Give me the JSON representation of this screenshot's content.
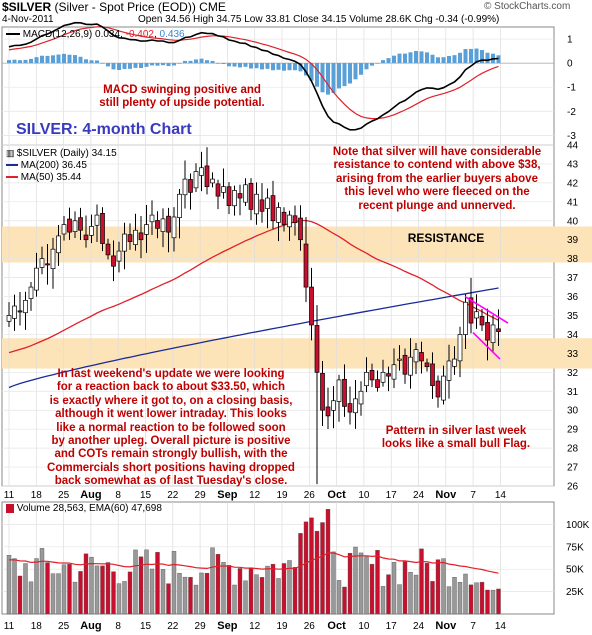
{
  "header": {
    "symbol": "$SILVER",
    "description": "(Silver - Spot Price (EOD)) CME",
    "date": "4-Nov-2011",
    "ohlc_line": "Open 34.56 High 34.75 Low 33.81 Close 34.15 Volume 28.6K Chg -0.34 (-0.99%)",
    "watermark": "© StockCharts.com"
  },
  "colors": {
    "up_candle": "#ffffff",
    "down_candle": "#c8102e",
    "ma200": "#1a2a9a",
    "ma50": "#e0202a",
    "zone": "#fde3b8",
    "annotation": "#c00000",
    "title": "#3a3ac0",
    "macd_hist": "#5aa0d8",
    "flag_lines": "#ff00ff"
  },
  "panels": {
    "macd_label_prefix": "MACD(12,26,9)",
    "macd_values": [
      "0.034",
      "-0.402",
      "0.436"
    ],
    "price_label": "$SILVER (Daily) 34.15",
    "ma200_label": "MA(200) 36.45",
    "ma50_label": "MA(50) 35.44",
    "volume_label": "Volume 28,563, EMA(60) 47,698"
  },
  "annotations": {
    "title": "SILVER: 4-month Chart",
    "macd_note": "MACD swinging positive and\nstill plenty of upside potential.",
    "resistance_note": "Note that silver will have considerable\nresistance to contend with above $38,\narising from the earlier buyers above\nthis level who were fleeced on the\nrecent plunge and unnerved.",
    "resistance_label": "RESISTANCE",
    "update_note": "In last weekend's update we were looking\nfor a reaction back to about $33.50, which\nis exactly where it got to, on a closing basis,\nalthough it went lower intraday. This looks\nlike a normal reaction to be followed soon\nby another upleg. Overall picture is positive\nand COTs remain strongly bullish, with the\nCommercials short positions having dropped\nback somewhat as of last Tuesday's close.",
    "flag_note": "Pattern in silver last week\nlooks like a small bull Flag."
  },
  "chart_data": {
    "type": "candlestick",
    "x_tick_labels": [
      "11",
      "18",
      "25",
      "Aug",
      "8",
      "15",
      "22",
      "29",
      "Sep",
      "12",
      "19",
      "26",
      "Oct",
      "10",
      "17",
      "24",
      "Nov",
      "7",
      "14"
    ],
    "price_axis": {
      "min": 26,
      "max": 44,
      "ticks": [
        26,
        27,
        28,
        29,
        30,
        31,
        32,
        33,
        34,
        35,
        36,
        37,
        38,
        39,
        40,
        41,
        42,
        43,
        44
      ]
    },
    "macd_axis": {
      "min": -3,
      "max": 1,
      "ticks": [
        1,
        0,
        -1,
        -2,
        -3
      ]
    },
    "volume_axis": {
      "ticks": [
        "100K",
        "75K",
        "50K",
        "25K"
      ],
      "tick_values": [
        100000,
        75000,
        50000,
        25000
      ],
      "max": 125000
    },
    "resistance_zone": [
      37.8,
      39.7
    ],
    "support_zone": [
      32.2,
      33.8
    ],
    "closes": [
      35.0,
      35.5,
      35.2,
      35.8,
      36.5,
      37.5,
      38.0,
      37.7,
      38.5,
      39.2,
      39.8,
      39.4,
      40.0,
      39.5,
      39.0,
      39.7,
      40.3,
      38.8,
      38.2,
      37.6,
      38.4,
      39.3,
      38.9,
      39.5,
      39.0,
      39.8,
      40.3,
      39.6,
      40.1,
      39.4,
      40.2,
      41.4,
      42.2,
      41.5,
      42.6,
      42.8,
      41.8,
      42.2,
      41.3,
      41.8,
      40.8,
      41.6,
      41.2,
      41.9,
      40.6,
      41.4,
      40.5,
      41.2,
      40.0,
      40.7,
      39.8,
      40.3,
      39.9,
      39.0,
      36.5,
      34.5,
      32.0,
      30.0,
      29.7,
      30.5,
      31.6,
      30.2,
      29.9,
      30.6,
      31.0,
      32.0,
      31.6,
      31.2,
      32.0,
      31.8,
      32.4,
      32.7,
      31.9,
      32.8,
      33.2,
      32.6,
      32.3,
      31.3,
      30.7,
      31.8,
      32.6,
      32.7,
      34.0,
      35.7,
      34.6,
      35.2,
      34.5,
      33.7,
      34.5,
      34.15
    ],
    "ma200": {
      "name": "MA(200)",
      "start": 31.2,
      "end": 36.45
    },
    "ma50": {
      "name": "MA(50)",
      "last": 35.44
    },
    "macd": {
      "name": "MACD(12,26,9)",
      "last": 0.034,
      "signal_last": -0.402,
      "hist_last": 0.436
    },
    "volume": {
      "name": "Volume",
      "last": 28563,
      "ema_name": "EMA(60)",
      "ema_last": 47698
    }
  }
}
